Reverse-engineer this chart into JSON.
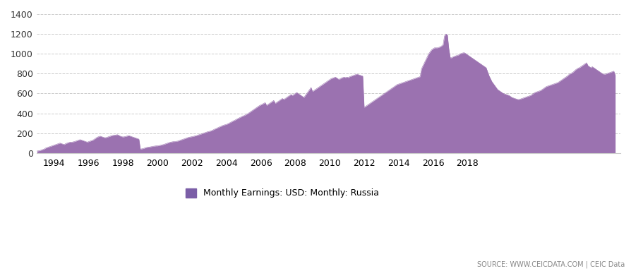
{
  "fill_color": "#9B72B0",
  "line_color": "#9B72B0",
  "background_color": "#ffffff",
  "grid_color": "#cccccc",
  "legend_label": "Monthly Earnings: USD: Monthly: Russia",
  "legend_color": "#7B5EA7",
  "source_text": "SOURCE: WWW.CEICDATA.COM | CEIC Data",
  "ylim": [
    0,
    1400
  ],
  "yticks": [
    0,
    200,
    400,
    600,
    800,
    1000,
    1200,
    1400
  ],
  "xtick_years": [
    1994,
    1996,
    1998,
    2000,
    2002,
    2004,
    2006,
    2008,
    2010,
    2012,
    2014,
    2016,
    2018
  ],
  "start_year": 1993.0,
  "values": [
    20,
    22,
    25,
    30,
    35,
    40,
    50,
    55,
    60,
    65,
    70,
    75,
    80,
    85,
    90,
    95,
    100,
    95,
    90,
    85,
    95,
    100,
    105,
    110,
    108,
    112,
    115,
    120,
    125,
    130,
    135,
    130,
    125,
    120,
    115,
    110,
    115,
    120,
    125,
    130,
    140,
    150,
    160,
    165,
    170,
    165,
    160,
    155,
    155,
    160,
    165,
    170,
    175,
    178,
    180,
    182,
    185,
    178,
    170,
    165,
    162,
    165,
    168,
    172,
    175,
    170,
    165,
    160,
    155,
    150,
    145,
    140,
    40,
    42,
    45,
    50,
    55,
    58,
    60,
    62,
    65,
    68,
    70,
    72,
    72,
    75,
    78,
    82,
    85,
    90,
    95,
    100,
    105,
    110,
    112,
    115,
    115,
    118,
    120,
    125,
    130,
    135,
    140,
    145,
    150,
    155,
    160,
    162,
    165,
    168,
    172,
    175,
    180,
    185,
    190,
    195,
    200,
    205,
    210,
    215,
    218,
    222,
    228,
    235,
    242,
    248,
    255,
    262,
    268,
    275,
    280,
    285,
    288,
    295,
    302,
    310,
    318,
    325,
    332,
    340,
    348,
    355,
    362,
    370,
    375,
    382,
    390,
    398,
    408,
    418,
    428,
    438,
    448,
    458,
    468,
    478,
    485,
    492,
    500,
    508,
    480,
    490,
    500,
    510,
    520,
    530,
    500,
    510,
    520,
    530,
    540,
    550,
    540,
    550,
    560,
    570,
    580,
    590,
    580,
    590,
    600,
    610,
    600,
    590,
    580,
    570,
    560,
    580,
    600,
    620,
    640,
    660,
    620,
    630,
    640,
    650,
    660,
    670,
    680,
    690,
    700,
    710,
    720,
    730,
    740,
    750,
    755,
    760,
    765,
    755,
    745,
    745,
    755,
    760,
    765,
    760,
    765,
    760,
    770,
    775,
    780,
    785,
    790,
    795,
    790,
    785,
    780,
    775,
    460,
    470,
    480,
    490,
    500,
    510,
    520,
    530,
    540,
    550,
    560,
    570,
    580,
    590,
    600,
    610,
    620,
    630,
    640,
    650,
    660,
    670,
    680,
    690,
    695,
    700,
    705,
    710,
    715,
    720,
    725,
    730,
    735,
    740,
    745,
    750,
    755,
    760,
    765,
    770,
    850,
    880,
    910,
    940,
    970,
    1000,
    1020,
    1040,
    1050,
    1060,
    1060,
    1060,
    1065,
    1070,
    1080,
    1090,
    1180,
    1200,
    1190,
    1050,
    960,
    960,
    970,
    975,
    980,
    985,
    990,
    1000,
    1005,
    1010,
    1010,
    1000,
    990,
    980,
    970,
    960,
    950,
    940,
    930,
    920,
    910,
    900,
    890,
    880,
    870,
    860,
    820,
    780,
    750,
    720,
    700,
    680,
    660,
    640,
    630,
    620,
    610,
    600,
    595,
    590,
    585,
    580,
    570,
    560,
    555,
    550,
    545,
    540,
    540,
    545,
    550,
    555,
    560,
    565,
    570,
    575,
    580,
    590,
    600,
    610,
    615,
    620,
    625,
    630,
    640,
    650,
    660,
    670,
    675,
    680,
    685,
    690,
    695,
    700,
    705,
    710,
    720,
    730,
    740,
    750,
    760,
    770,
    780,
    795,
    800,
    810,
    820,
    835,
    845,
    855,
    860,
    870,
    880,
    890,
    900,
    910,
    880,
    870,
    860,
    870,
    860,
    850,
    840,
    830,
    820,
    810,
    800,
    795,
    795,
    800,
    805,
    810,
    815,
    820,
    825,
    785
  ]
}
